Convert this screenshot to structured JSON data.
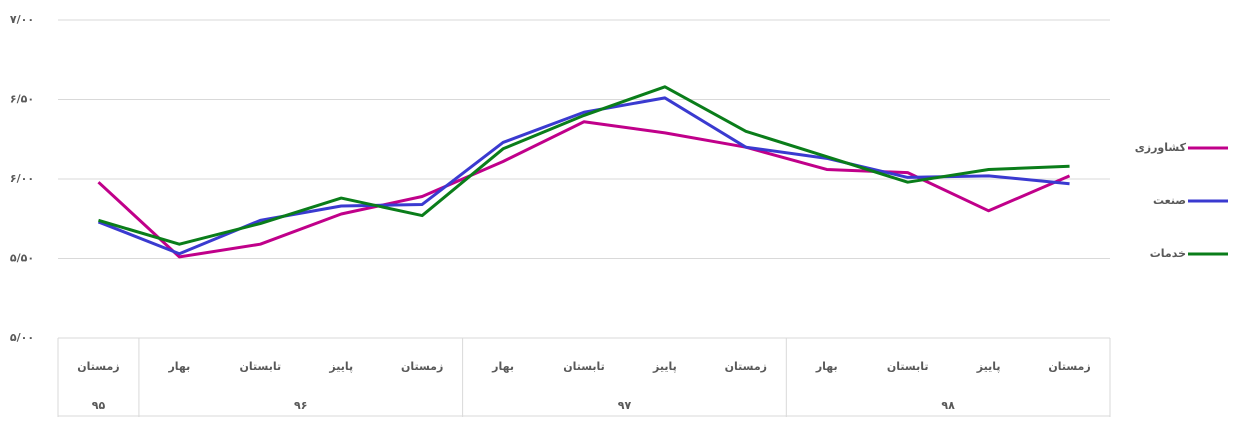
{
  "chart_data": {
    "type": "line",
    "categories": [
      "زمستان",
      "بهار",
      "تابستان",
      "پاییز",
      "زمستان",
      "بهار",
      "تابستان",
      "پاییز",
      "زمستان",
      "بهار",
      "تابستان",
      "پاییز",
      "زمستان"
    ],
    "category_groups": [
      "۹۵",
      "۹۶",
      "۹۶",
      "۹۶",
      "۹۶",
      "۹۷",
      "۹۷",
      "۹۷",
      "۹۷",
      "۹۸",
      "۹۸",
      "۹۸",
      "۹۸"
    ],
    "series": [
      {
        "name": "کشاورزی",
        "color": "#c0008a",
        "values": [
          5.98,
          5.51,
          5.59,
          5.78,
          5.89,
          6.11,
          6.36,
          6.29,
          6.2,
          6.06,
          6.04,
          5.8,
          6.02
        ]
      },
      {
        "name": "صنعت",
        "color": "#3a3ad0",
        "values": [
          5.73,
          5.53,
          5.74,
          5.83,
          5.84,
          6.23,
          6.42,
          6.51,
          6.2,
          6.13,
          6.01,
          6.02,
          5.97
        ]
      },
      {
        "name": "خدمات",
        "color": "#0a7d1a",
        "values": [
          5.74,
          5.59,
          5.72,
          5.88,
          5.77,
          6.19,
          6.4,
          6.58,
          6.3,
          6.14,
          5.98,
          6.06,
          6.08
        ]
      }
    ],
    "ylim": [
      5,
      7
    ],
    "yticks": [
      {
        "value": 5,
        "label": "۵/۰۰"
      },
      {
        "value": 5.5,
        "label": "۵/۵۰"
      },
      {
        "value": 6,
        "label": "۶/۰۰"
      },
      {
        "value": 6.5,
        "label": "۶/۵۰"
      },
      {
        "value": 7,
        "label": "۷/۰۰"
      }
    ],
    "grid": true,
    "legend": "right"
  }
}
